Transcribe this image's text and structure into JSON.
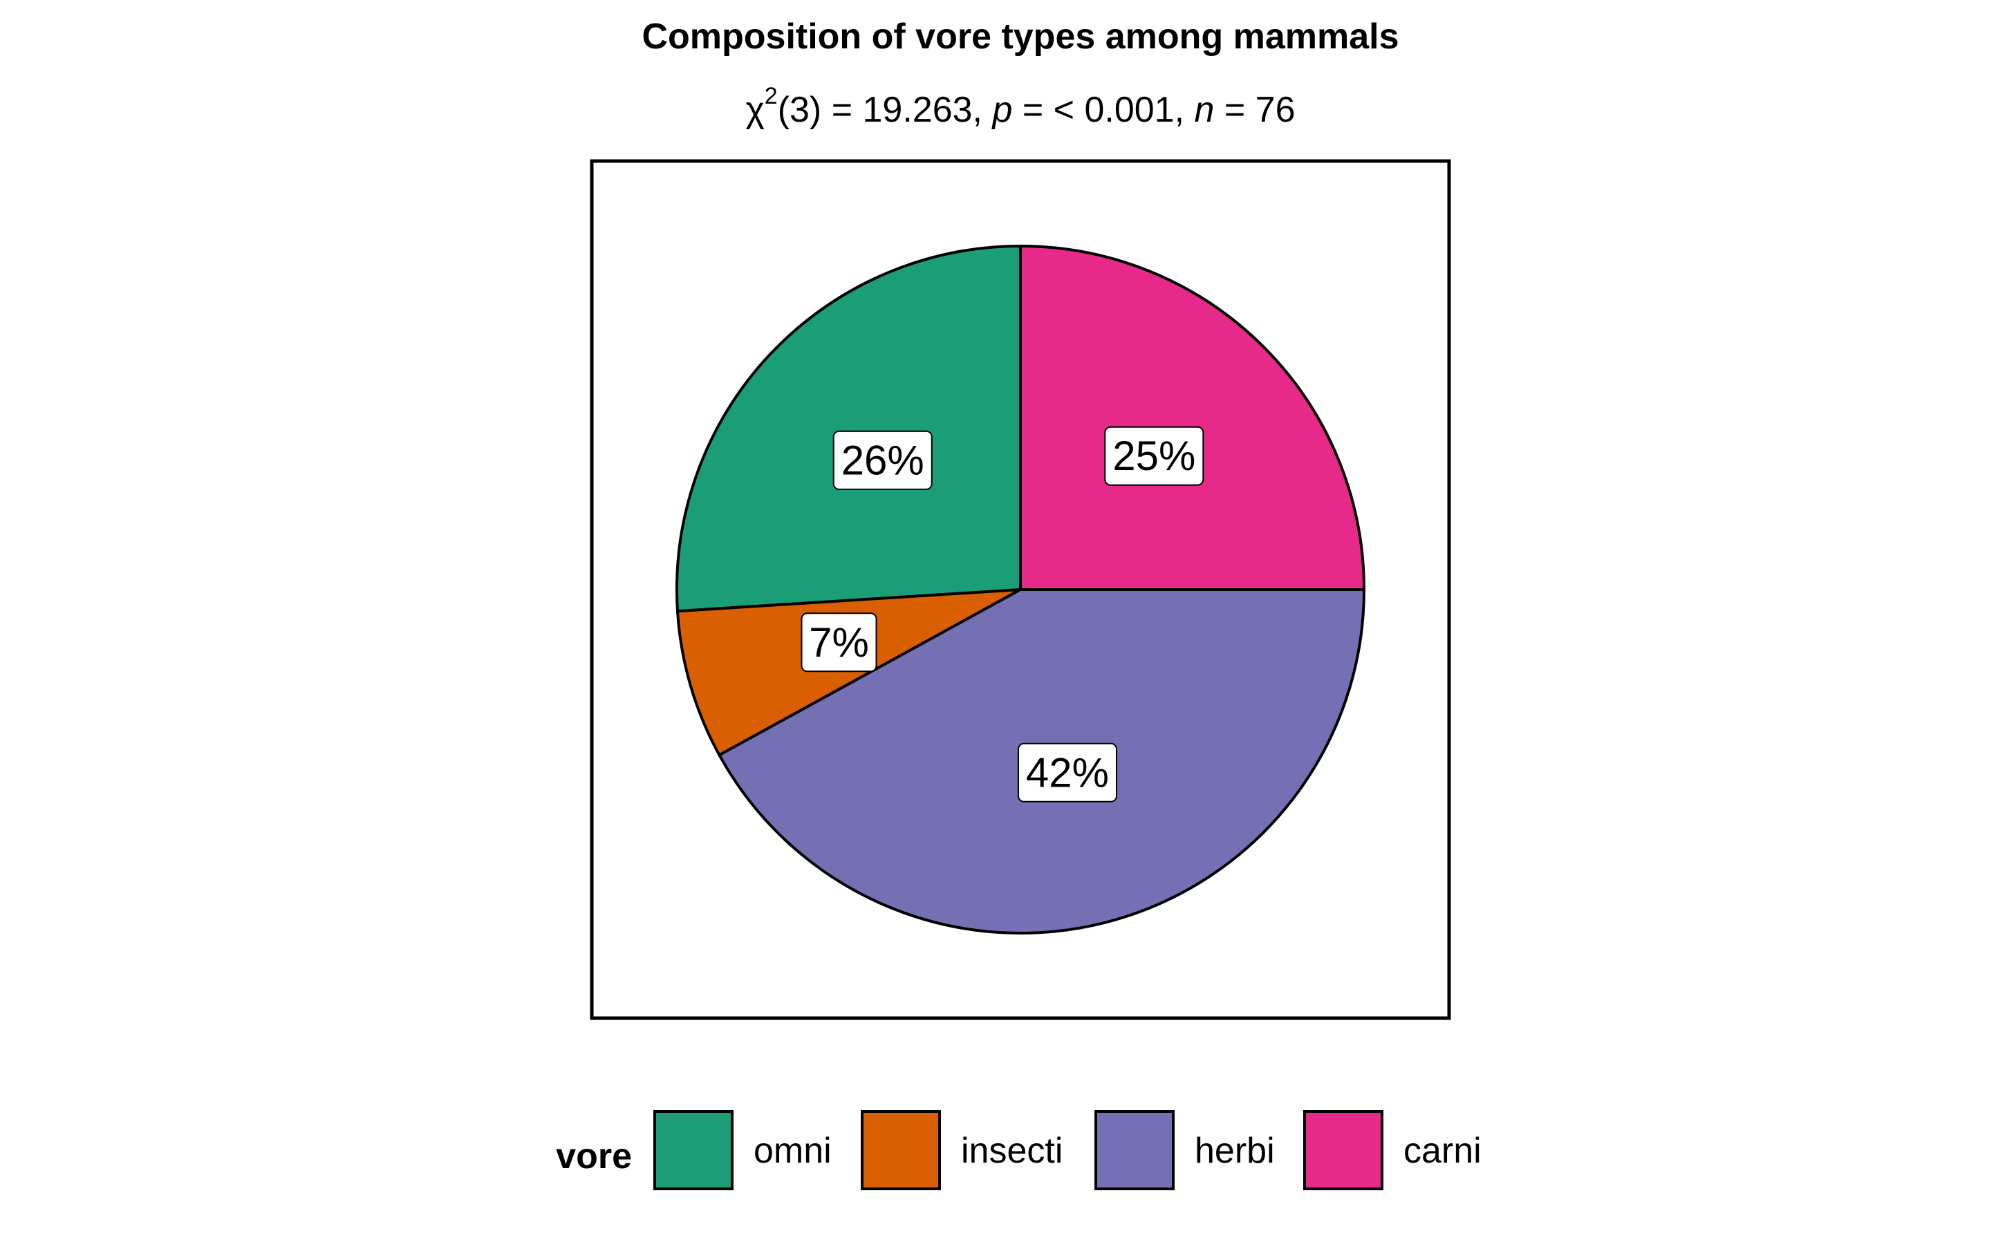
{
  "chart_data": {
    "type": "pie",
    "title": "Composition of vore types among mammals",
    "subtitle": {
      "chi_symbol": "χ",
      "chi_sup": "2",
      "df": "(3) = 19.263, ",
      "p_symbol": "p",
      "p_text": " = < 0.001, ",
      "n_symbol": "n",
      "n_text": " = 76"
    },
    "legend": {
      "title": "vore",
      "position": "bottom"
    },
    "slices": [
      {
        "category": "omni",
        "value": 26,
        "label": "26%",
        "color": "#1B9E77"
      },
      {
        "category": "insecti",
        "value": 7,
        "label": "7%",
        "color": "#D95F02"
      },
      {
        "category": "herbi",
        "value": 42,
        "label": "42%",
        "color": "#7570B3"
      },
      {
        "category": "carni",
        "value": 25,
        "label": "25%",
        "color": "#E7298A"
      }
    ]
  }
}
